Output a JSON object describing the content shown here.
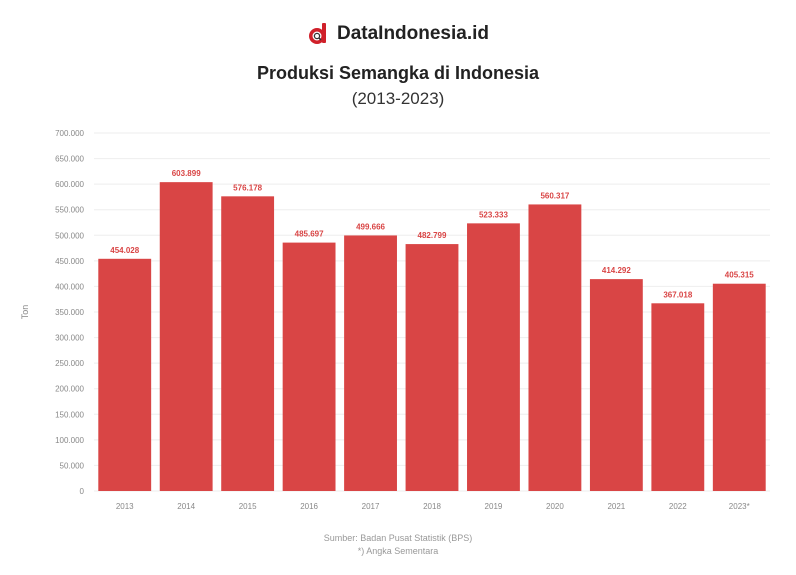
{
  "brand": {
    "name": "DataIndonesia.id",
    "icon": "dataindonesia-logo-icon",
    "color": "#d0202a"
  },
  "chart_data": {
    "type": "bar",
    "title": "Produksi Semangka di Indonesia",
    "subtitle": "(2013-2023)",
    "ylabel": "Ton",
    "xlabel": "",
    "categories": [
      "2013",
      "2014",
      "2015",
      "2016",
      "2017",
      "2018",
      "2019",
      "2020",
      "2021",
      "2022",
      "2023*"
    ],
    "values": [
      454028,
      603899,
      576178,
      485697,
      499666,
      482799,
      523333,
      560317,
      414292,
      367018,
      405315
    ],
    "value_labels": [
      "454.028",
      "603.899",
      "576.178",
      "485.697",
      "499.666",
      "482.799",
      "523.333",
      "560.317",
      "414.292",
      "367.018",
      "405.315"
    ],
    "yticks": [
      "0",
      "50.000",
      "100.000",
      "150.000",
      "200.000",
      "250.000",
      "300.000",
      "350.000",
      "400.000",
      "450.000",
      "500.000",
      "550.000",
      "600.000",
      "650.000",
      "700.000"
    ],
    "ylim": [
      0,
      700000
    ],
    "grid": true,
    "bar_color": "#d94545"
  },
  "footer": {
    "source": "Sumber: Badan Pusat Statistik (BPS)",
    "note": "*) Angka Sementara"
  }
}
